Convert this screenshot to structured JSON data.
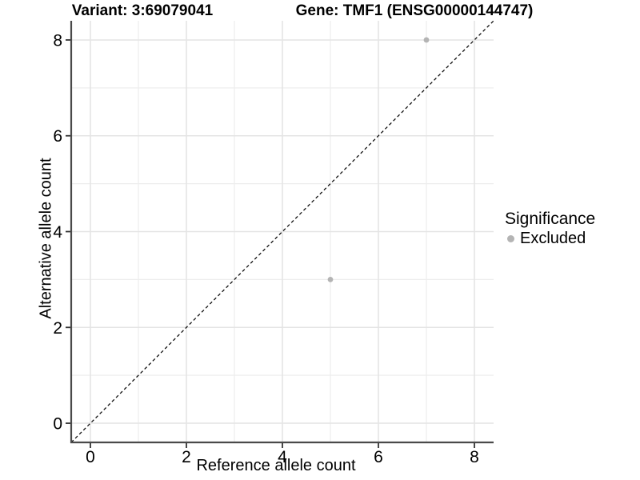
{
  "colors": {
    "background": "#ffffff",
    "grid_major": "#e4e4e4",
    "grid_minor": "#ededed",
    "axis_line": "#4a4a4a",
    "tick_mark": "#333333",
    "tick_label": "#000000",
    "point": "#b4b4b4",
    "identity_line": "#111111",
    "text": "#000000"
  },
  "chart_data": {
    "type": "scatter",
    "title_left": "Variant: 3:69079041",
    "title_right": "Gene: TMF1 (ENSG00000144747)",
    "xlabel": "Reference allele count",
    "ylabel": "Alternative allele count",
    "xlim": [
      -0.4,
      8.4
    ],
    "ylim": [
      -0.4,
      8.4
    ],
    "x_ticks": [
      0,
      2,
      4,
      6,
      8
    ],
    "y_ticks": [
      0,
      2,
      4,
      6,
      8
    ],
    "grid_values": [
      0,
      1,
      2,
      3,
      4,
      5,
      6,
      7,
      8
    ],
    "grid": "on",
    "identity_line": {
      "slope": 1,
      "intercept": 0,
      "style": "dashed"
    },
    "series": [
      {
        "name": "Excluded",
        "color": "#b4b4b4",
        "marker": "circle",
        "points": [
          {
            "x": 5,
            "y": 3
          },
          {
            "x": 7,
            "y": 8
          }
        ]
      }
    ],
    "legend": {
      "title": "Significance",
      "position": "right",
      "entries": [
        {
          "label": "Excluded",
          "color": "#b4b4b4"
        }
      ]
    }
  }
}
